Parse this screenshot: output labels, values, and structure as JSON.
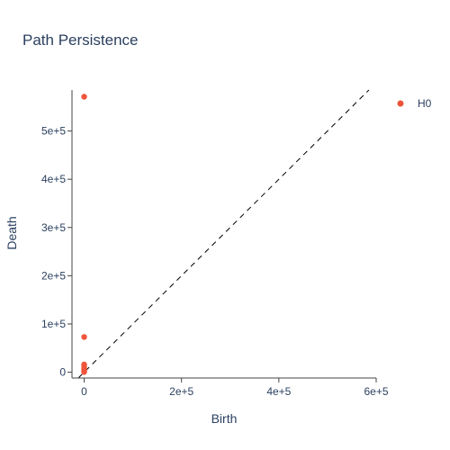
{
  "chart_data": {
    "type": "scatter",
    "title": "Path Persistence",
    "xlabel": "Birth",
    "ylabel": "Death",
    "xlim": [
      -25000,
      600000
    ],
    "ylim": [
      -12000,
      585000
    ],
    "x_ticks": [
      {
        "value": 0,
        "label": "0"
      },
      {
        "value": 200000,
        "label": "2e+5"
      },
      {
        "value": 400000,
        "label": "4e+5"
      },
      {
        "value": 600000,
        "label": "6e+5"
      }
    ],
    "y_ticks": [
      {
        "value": 0,
        "label": "0"
      },
      {
        "value": 100000,
        "label": "1e+5"
      },
      {
        "value": 200000,
        "label": "2e+5"
      },
      {
        "value": 300000,
        "label": "3e+5"
      },
      {
        "value": 400000,
        "label": "4e+5"
      },
      {
        "value": 500000,
        "label": "5e+5"
      }
    ],
    "diagonal": true,
    "grid": false,
    "legend_position": "top-right",
    "series": [
      {
        "name": "H0",
        "color": "#ef553b",
        "points": [
          {
            "x": 0,
            "y": 571000
          },
          {
            "x": 0,
            "y": 73000
          },
          {
            "x": 0,
            "y": 16000
          },
          {
            "x": 0,
            "y": 11000
          },
          {
            "x": 0,
            "y": 7000
          },
          {
            "x": 0,
            "y": 4000
          },
          {
            "x": 0,
            "y": 2000
          },
          {
            "x": 0,
            "y": 500
          }
        ]
      }
    ]
  }
}
